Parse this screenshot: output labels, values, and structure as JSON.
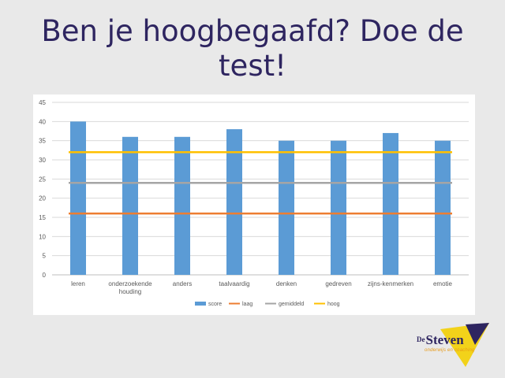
{
  "slide": {
    "title_line1": "Ben je hoogbegaafd? Doe de",
    "title_line2": "test!"
  },
  "logo": {
    "prefix": "De",
    "name": "Steven",
    "tagline": "onderwijs en coaching",
    "colors": {
      "navy": "#2e2560",
      "yellow": "#f2d21a",
      "orange": "#e89a16"
    }
  },
  "chart_data": {
    "type": "bar",
    "categories": [
      [
        "leren"
      ],
      [
        "onderzoekende",
        "houding"
      ],
      [
        "anders"
      ],
      [
        "taalvaardig"
      ],
      [
        "denken"
      ],
      [
        "gedreven"
      ],
      [
        "zijns-kenmerken"
      ],
      [
        "emotie"
      ]
    ],
    "series": [
      {
        "name": "score",
        "kind": "bar",
        "color": "#5b9bd5",
        "values": [
          40,
          36,
          36,
          38,
          35,
          35,
          37,
          35
        ]
      },
      {
        "name": "laag",
        "kind": "line",
        "color": "#ed7d31",
        "values": [
          16,
          16,
          16,
          16,
          16,
          16,
          16,
          16
        ]
      },
      {
        "name": "gemiddeld",
        "kind": "line",
        "color": "#a5a5a5",
        "values": [
          24,
          24,
          24,
          24,
          24,
          24,
          24,
          24
        ]
      },
      {
        "name": "hoog",
        "kind": "line",
        "color": "#ffc000",
        "values": [
          32,
          32,
          32,
          32,
          32,
          32,
          32,
          32
        ]
      }
    ],
    "ylim": [
      0,
      45
    ],
    "yticks": [
      0,
      5,
      10,
      15,
      20,
      25,
      30,
      35,
      40,
      45
    ],
    "grid": true,
    "legend": "bottom"
  }
}
